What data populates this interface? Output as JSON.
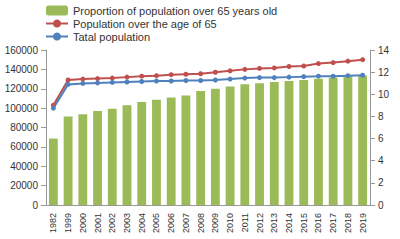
{
  "chart_data": {
    "type": "bar",
    "categories": [
      "1982",
      "1999",
      "2000",
      "2001",
      "2002",
      "2003",
      "2004",
      "2005",
      "2006",
      "2007",
      "2008",
      "2009",
      "2010",
      "2011",
      "2012",
      "2013",
      "2014",
      "2015",
      "2016",
      "2017",
      "2018",
      "2019"
    ],
    "series": [
      {
        "name": "Proportion of population over 65 years old",
        "type": "bar",
        "axis": "y2",
        "color": "#9bbb59",
        "values": [
          6.0,
          8.0,
          8.2,
          8.5,
          8.7,
          9.0,
          9.3,
          9.5,
          9.7,
          9.9,
          10.3,
          10.5,
          10.7,
          10.9,
          11.0,
          11.1,
          11.2,
          11.3,
          11.4,
          11.5,
          11.6,
          11.7
        ]
      },
      {
        "name": "Population over the age of 65",
        "type": "line",
        "color": "#c0504d",
        "marker": "circle",
        "values": [
          103000,
          129000,
          130000,
          130500,
          131000,
          132000,
          133000,
          133500,
          134500,
          135000,
          135500,
          137000,
          138500,
          140000,
          141000,
          141500,
          143000,
          143500,
          146000,
          147000,
          148500,
          150000
        ]
      },
      {
        "name": "Tatal population",
        "type": "line",
        "color": "#4f81bd",
        "marker": "circle",
        "values": [
          100000,
          124500,
          125500,
          126000,
          126500,
          127000,
          127500,
          128000,
          128000,
          128500,
          128500,
          129000,
          130000,
          131000,
          131500,
          131500,
          132000,
          132500,
          133000,
          133000,
          133500,
          134000
        ]
      }
    ],
    "ylim": [
      0,
      160000
    ],
    "yticks": [
      0,
      20000,
      40000,
      60000,
      80000,
      100000,
      120000,
      140000,
      160000
    ],
    "y2lim": [
      0,
      14
    ],
    "y2ticks": [
      0,
      2,
      4,
      6,
      8,
      10,
      12,
      14
    ],
    "grid": false,
    "legend": "upper left"
  }
}
